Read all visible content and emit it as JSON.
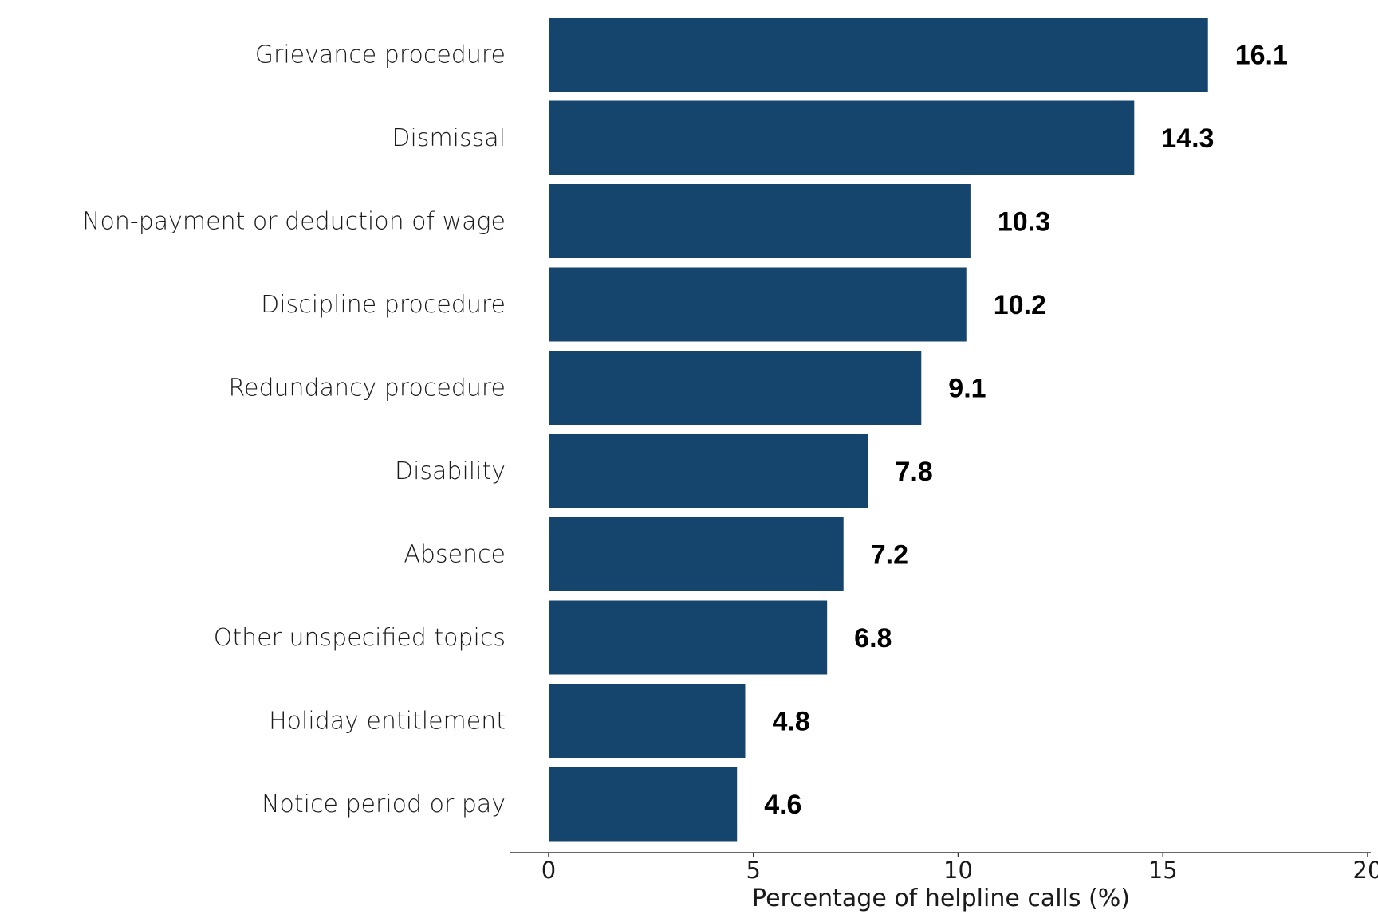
{
  "chart_data": {
    "type": "bar",
    "orientation": "horizontal",
    "categories": [
      "Grievance procedure",
      "Dismissal",
      "Non-payment or deduction of wage",
      "Discipline procedure",
      "Redundancy procedure",
      "Disability",
      "Absence",
      "Other unspecified topics",
      "Holiday entitlement",
      "Notice period or pay"
    ],
    "values": [
      16.1,
      14.3,
      10.3,
      10.2,
      9.1,
      7.8,
      7.2,
      6.8,
      4.8,
      4.6
    ],
    "title": "",
    "xlabel": "Percentage of helpline calls (%)",
    "ylabel": "",
    "xlim": [
      0,
      20
    ],
    "xticks": [
      0,
      5,
      10,
      15,
      20
    ],
    "grid": false,
    "bar_color": "#15446d",
    "data_labels": true
  }
}
